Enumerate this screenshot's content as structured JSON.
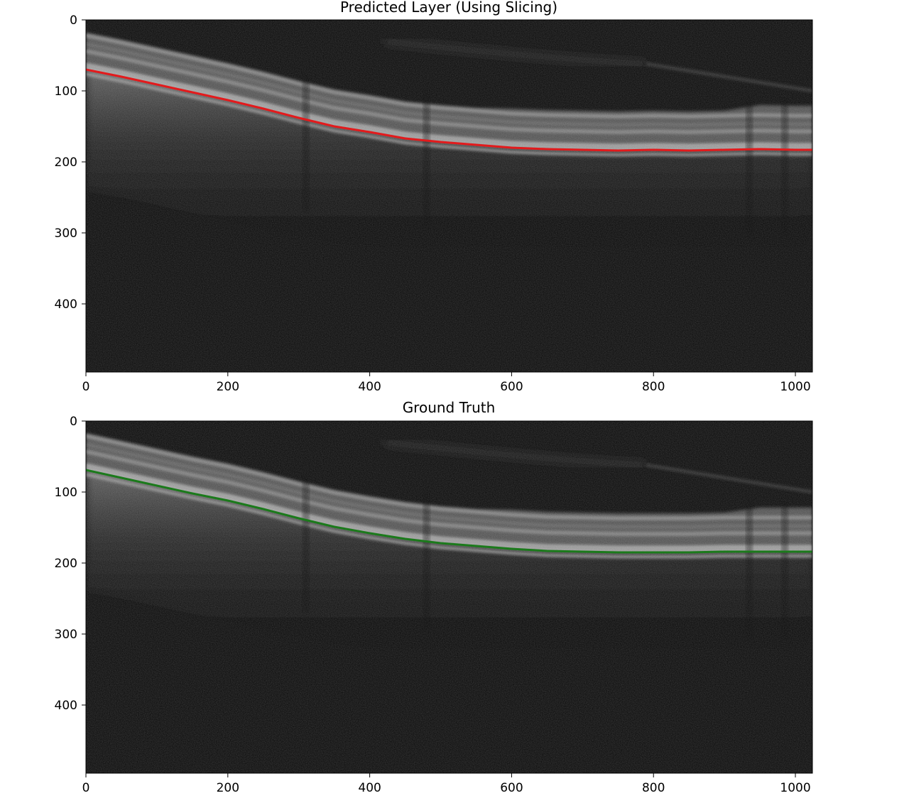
{
  "chart_data": [
    {
      "type": "line",
      "title": "Predicted Layer (Using Slicing)",
      "xlabel": "",
      "ylabel": "",
      "xlim": [
        0,
        1024
      ],
      "ylim": [
        496,
        0
      ],
      "x_ticks": [
        0,
        200,
        400,
        600,
        800,
        1000
      ],
      "y_ticks": [
        0,
        100,
        200,
        300,
        400
      ],
      "background": "grayscale OCT retinal B-scan",
      "grid": false,
      "series": [
        {
          "color": "#e31a1c",
          "x": [
            0,
            50,
            100,
            150,
            200,
            250,
            300,
            350,
            400,
            450,
            500,
            550,
            600,
            650,
            700,
            750,
            800,
            850,
            900,
            950,
            1000,
            1024
          ],
          "y": [
            70,
            80,
            91,
            102,
            113,
            125,
            138,
            150,
            158,
            167,
            172,
            176,
            180,
            182,
            183,
            184,
            183,
            184,
            183,
            182,
            183,
            183
          ]
        }
      ]
    },
    {
      "type": "line",
      "title": "Ground Truth",
      "xlabel": "",
      "ylabel": "",
      "xlim": [
        0,
        1024
      ],
      "ylim": [
        496,
        0
      ],
      "x_ticks": [
        0,
        200,
        400,
        600,
        800,
        1000
      ],
      "y_ticks": [
        0,
        100,
        200,
        300,
        400
      ],
      "background": "grayscale OCT retinal B-scan",
      "grid": false,
      "series": [
        {
          "color": "#1b7a1b",
          "x": [
            0,
            50,
            100,
            150,
            200,
            250,
            300,
            350,
            400,
            450,
            500,
            550,
            600,
            650,
            700,
            750,
            800,
            850,
            900,
            950,
            1000,
            1024
          ],
          "y": [
            69,
            80,
            91,
            102,
            112,
            124,
            137,
            149,
            158,
            166,
            172,
            176,
            180,
            183,
            184,
            185,
            185,
            185,
            184,
            184,
            184,
            184
          ]
        }
      ]
    }
  ]
}
